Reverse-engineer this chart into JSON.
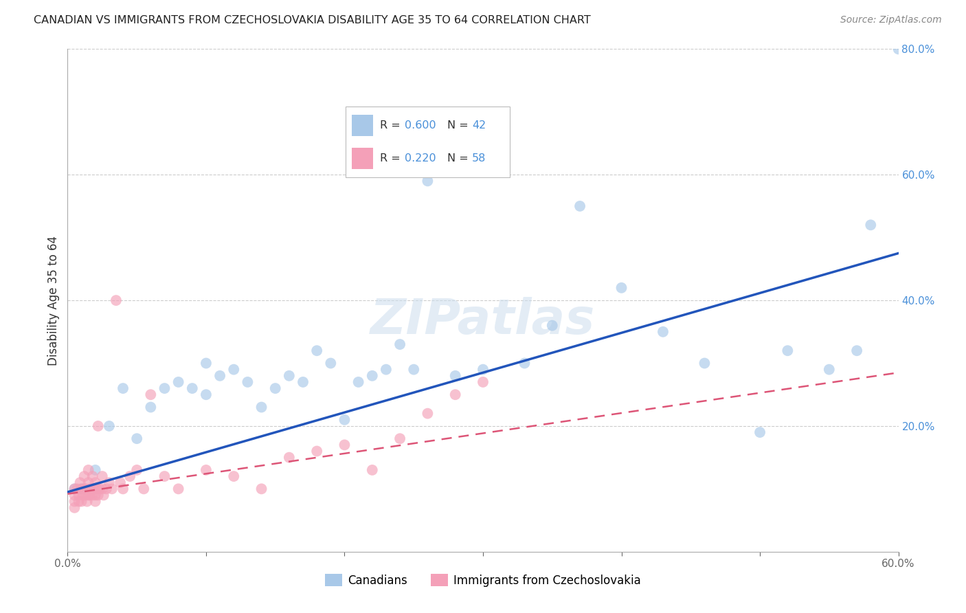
{
  "title": "CANADIAN VS IMMIGRANTS FROM CZECHOSLOVAKIA DISABILITY AGE 35 TO 64 CORRELATION CHART",
  "source": "Source: ZipAtlas.com",
  "ylabel": "Disability Age 35 to 64",
  "xlim": [
    0.0,
    0.6
  ],
  "ylim": [
    0.0,
    0.8
  ],
  "blue_color": "#a8c8e8",
  "pink_color": "#f4a0b8",
  "blue_line_color": "#2255bb",
  "pink_line_color": "#dd5577",
  "blue_line_x0": 0.0,
  "blue_line_y0": 0.095,
  "blue_line_x1": 0.6,
  "blue_line_y1": 0.475,
  "pink_line_x0": 0.0,
  "pink_line_y0": 0.092,
  "pink_line_x1": 0.6,
  "pink_line_y1": 0.285,
  "canadians_x": [
    0.005,
    0.01,
    0.02,
    0.03,
    0.04,
    0.05,
    0.06,
    0.07,
    0.08,
    0.09,
    0.1,
    0.1,
    0.11,
    0.12,
    0.13,
    0.14,
    0.15,
    0.16,
    0.17,
    0.18,
    0.19,
    0.2,
    0.21,
    0.22,
    0.23,
    0.24,
    0.25,
    0.26,
    0.28,
    0.3,
    0.33,
    0.35,
    0.37,
    0.4,
    0.43,
    0.46,
    0.5,
    0.52,
    0.55,
    0.57,
    0.58,
    0.6
  ],
  "canadians_y": [
    0.1,
    0.1,
    0.13,
    0.2,
    0.26,
    0.18,
    0.23,
    0.26,
    0.27,
    0.26,
    0.25,
    0.3,
    0.28,
    0.29,
    0.27,
    0.23,
    0.26,
    0.28,
    0.27,
    0.32,
    0.3,
    0.21,
    0.27,
    0.28,
    0.29,
    0.33,
    0.29,
    0.59,
    0.28,
    0.29,
    0.3,
    0.36,
    0.55,
    0.42,
    0.35,
    0.3,
    0.19,
    0.32,
    0.29,
    0.32,
    0.52,
    0.8
  ],
  "immigrants_x": [
    0.005,
    0.005,
    0.005,
    0.005,
    0.007,
    0.008,
    0.008,
    0.009,
    0.01,
    0.01,
    0.011,
    0.012,
    0.012,
    0.013,
    0.013,
    0.014,
    0.015,
    0.015,
    0.015,
    0.016,
    0.016,
    0.017,
    0.018,
    0.018,
    0.019,
    0.02,
    0.02,
    0.02,
    0.021,
    0.022,
    0.022,
    0.023,
    0.025,
    0.025,
    0.026,
    0.028,
    0.03,
    0.032,
    0.035,
    0.038,
    0.04,
    0.045,
    0.05,
    0.055,
    0.06,
    0.07,
    0.08,
    0.1,
    0.12,
    0.14,
    0.16,
    0.18,
    0.2,
    0.22,
    0.24,
    0.26,
    0.28,
    0.3
  ],
  "immigrants_y": [
    0.1,
    0.09,
    0.08,
    0.07,
    0.1,
    0.09,
    0.08,
    0.11,
    0.08,
    0.1,
    0.09,
    0.1,
    0.12,
    0.09,
    0.1,
    0.08,
    0.09,
    0.11,
    0.13,
    0.1,
    0.09,
    0.1,
    0.09,
    0.12,
    0.1,
    0.09,
    0.11,
    0.08,
    0.1,
    0.09,
    0.2,
    0.1,
    0.12,
    0.1,
    0.09,
    0.1,
    0.11,
    0.1,
    0.4,
    0.11,
    0.1,
    0.12,
    0.13,
    0.1,
    0.25,
    0.12,
    0.1,
    0.13,
    0.12,
    0.1,
    0.15,
    0.16,
    0.17,
    0.13,
    0.18,
    0.22,
    0.25,
    0.27
  ],
  "watermark_text": "ZIPatlas",
  "bottom_legend": [
    "Canadians",
    "Immigrants from Czechoslovakia"
  ]
}
